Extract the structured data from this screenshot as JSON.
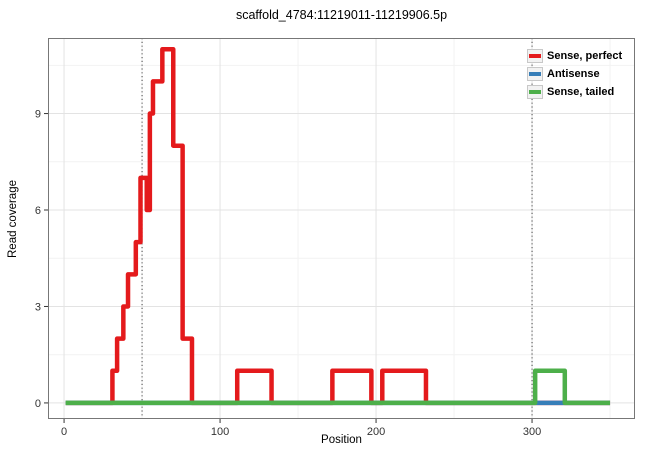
{
  "title": "scaffold_4784:11219011-11219906.5p",
  "legend": {
    "items": [
      {
        "label": "Sense, perfect",
        "color": "#e41a1c"
      },
      {
        "label": "Antisense",
        "color": "#377eb8"
      },
      {
        "label": "Sense, tailed",
        "color": "#4daf4a"
      }
    ]
  },
  "colors": {
    "panel_border": "#777777",
    "grid_major": "#e3e3e3",
    "grid_minor": "#f2f2f2",
    "tick_mark": "#333333",
    "tick_label": "#333333",
    "guide_line": "#444444"
  },
  "chart_data": {
    "type": "line",
    "subtype": "step-coverage",
    "title": "scaffold_4784:11219011-11219906.5p",
    "xlabel": "Position",
    "ylabel": "Read coverage",
    "x_ticks": [
      0,
      100,
      200,
      300
    ],
    "x_minor": [
      50,
      150,
      250,
      350
    ],
    "y_ticks": [
      0,
      3,
      6,
      9
    ],
    "y_minor": [
      1.5,
      4.5,
      7.5,
      10.5
    ],
    "x_domain": [
      -10.3,
      366
    ],
    "y_domain": [
      -0.5,
      11.35
    ],
    "guide_vlines": [
      50,
      300
    ],
    "line_width": 4.5,
    "draw_order": [
      0,
      1,
      2
    ],
    "series": [
      {
        "name": "Sense, perfect",
        "color": "#e41a1c",
        "segments": [
          [
            1,
            31,
            0
          ],
          [
            31,
            34,
            1
          ],
          [
            34,
            38,
            2
          ],
          [
            38,
            41,
            3
          ],
          [
            41,
            46,
            4
          ],
          [
            46,
            49,
            5
          ],
          [
            49,
            53,
            7
          ],
          [
            53,
            55,
            6
          ],
          [
            55,
            57,
            9
          ],
          [
            57,
            63,
            10
          ],
          [
            63,
            70,
            11
          ],
          [
            70,
            76,
            8
          ],
          [
            76,
            82,
            2
          ],
          [
            82,
            111,
            0
          ],
          [
            111,
            133,
            1
          ],
          [
            133,
            172,
            0
          ],
          [
            172,
            197,
            1
          ],
          [
            197,
            204,
            0
          ],
          [
            204,
            232,
            1
          ],
          [
            232,
            350,
            0
          ]
        ]
      },
      {
        "name": "Antisense",
        "color": "#377eb8",
        "segments": [
          [
            1,
            350,
            0
          ]
        ]
      },
      {
        "name": "Sense, tailed",
        "color": "#4daf4a",
        "segments": [
          [
            1,
            302,
            0
          ],
          [
            302,
            321,
            1
          ],
          [
            321,
            350,
            0
          ]
        ]
      }
    ]
  }
}
